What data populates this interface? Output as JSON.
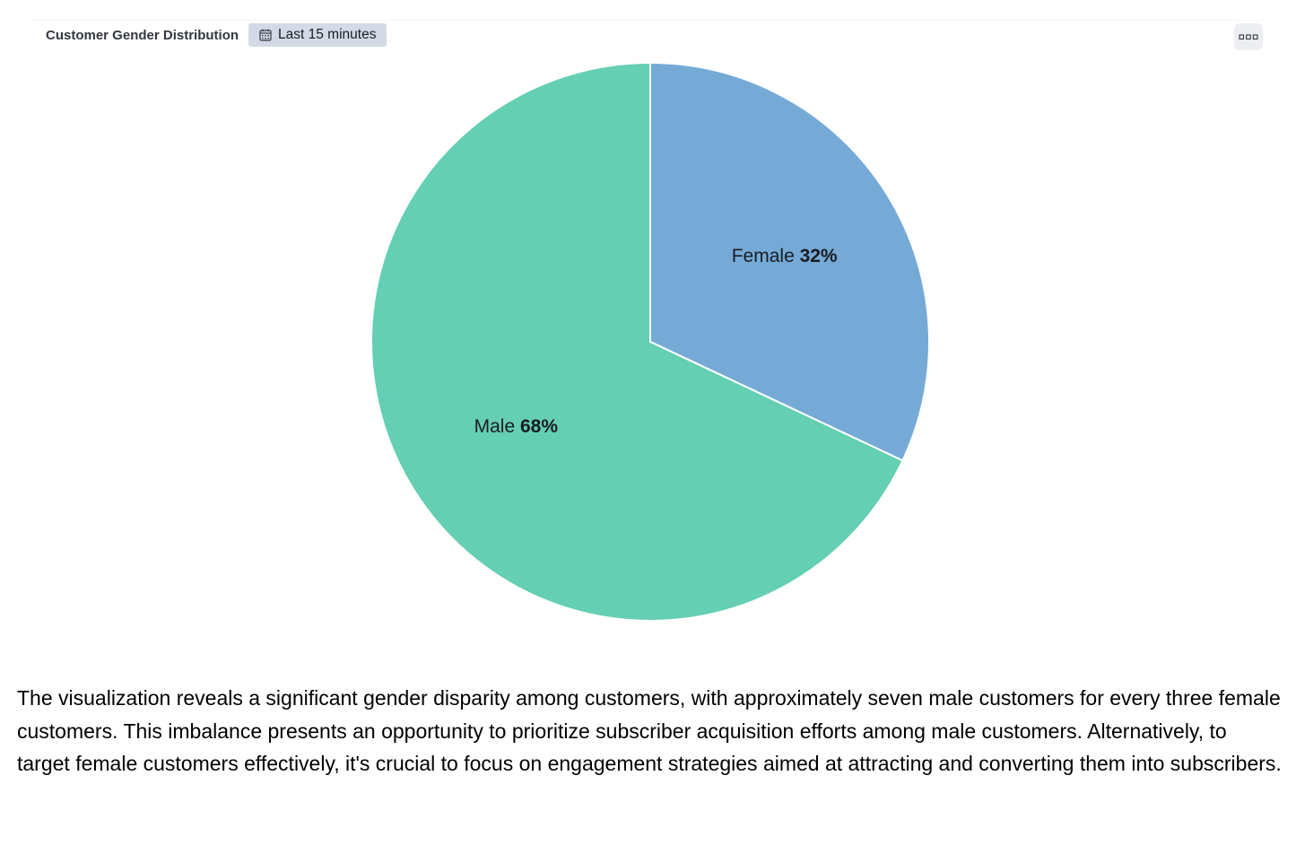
{
  "panel": {
    "title": "Customer Gender Distribution",
    "time_range": "Last 15 minutes",
    "time_icon": "calendar-icon",
    "menu_icon": "options-menu-icon"
  },
  "chart_data": {
    "type": "pie",
    "unit": "%",
    "slices": [
      {
        "label": "Female",
        "value": 32,
        "color": "#75aad7"
      },
      {
        "label": "Male",
        "value": 68,
        "color": "#64cfb2"
      }
    ],
    "start_angle_deg": 0,
    "direction": "clockwise",
    "slice_border_color": "#ffffff"
  },
  "description": "The visualization reveals a significant gender disparity among customers, with approximately seven male customers for every three female customers. This imbalance presents an opportunity to prioritize subscriber acquisition efforts among male customers. Alternatively, to target female customers effectively, it's crucial to focus on engagement strategies aimed at attracting and converting them into subscribers."
}
